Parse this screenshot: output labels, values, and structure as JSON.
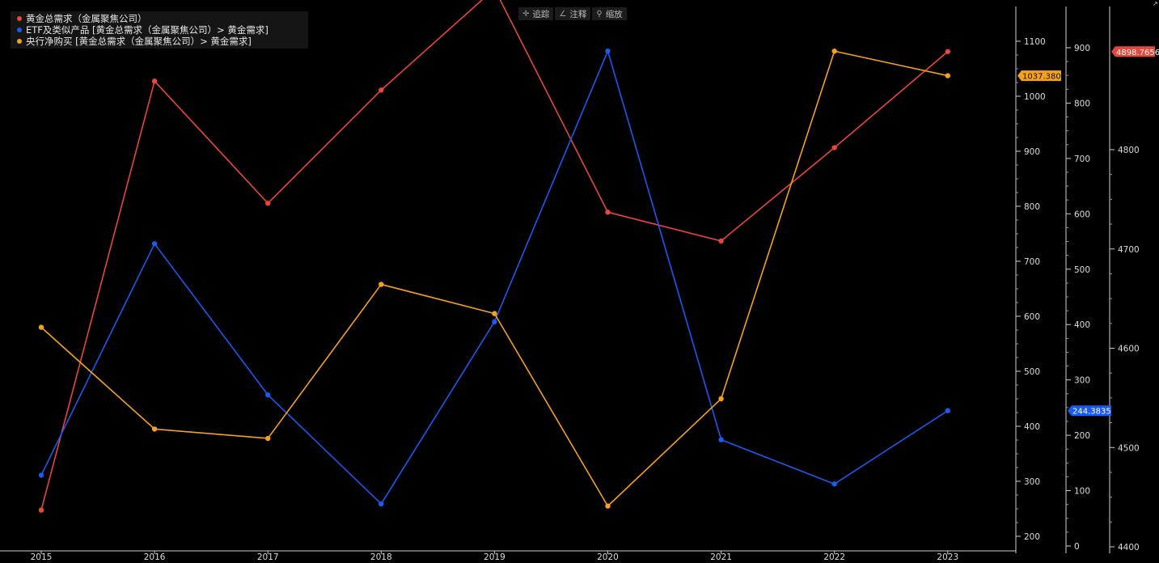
{
  "toolbar": {
    "track_label": "追踪",
    "annotate_label": "注释",
    "zoom_label": "缩放",
    "track_icon": "crosshair-icon",
    "annotate_icon": "pencil-icon",
    "zoom_icon": "magnifier-icon"
  },
  "legend": [
    {
      "label": "黄金总需求（金属聚焦公司）",
      "color": "#e8473b"
    },
    {
      "label": "ETF及类似产品 [黄金总需求（金属聚焦公司）> 黄金需求]",
      "color": "#1a5af0"
    },
    {
      "label": "央行净购买 [黄金总需求（金属聚焦公司）> 黄金需求]",
      "color": "#f5a11c"
    }
  ],
  "chart_data": {
    "type": "line",
    "x": [
      "2015",
      "2016",
      "2017",
      "2018",
      "2019",
      "2020",
      "2021",
      "2022",
      "2023"
    ],
    "series": [
      {
        "name": "黄金总需求（金属聚焦公司）",
        "color": "#e8473b",
        "axis": "axis3",
        "values": [
          4437,
          4869,
          4746,
          4860,
          4962,
          4737,
          4708,
          4802,
          4898.7656
        ],
        "last_label": "4898.7656"
      },
      {
        "name": "ETF及类似产品 [黄金总需求（金属聚焦公司）> 黄金需求]",
        "color": "#1a5af0",
        "axis": "axis2",
        "values": [
          128,
          546,
          273,
          76,
          405,
          894,
          192,
          112,
          244.3835
        ],
        "last_label": "244.3835"
      },
      {
        "name": "央行净购买 [黄金总需求（金属聚焦公司）> 黄金需求]",
        "color": "#f5a11c",
        "axis": "axis1",
        "values": [
          580,
          395,
          378,
          658,
          605,
          255,
          450,
          1082,
          1037.3807
        ],
        "last_label": "1037.3807"
      }
    ],
    "axes": {
      "axis1": {
        "min": 180,
        "max": 1120,
        "ticks": [
          200,
          300,
          400,
          500,
          600,
          700,
          800,
          900,
          1000,
          1100
        ]
      },
      "axis2": {
        "min": -10,
        "max": 945,
        "ticks": [
          0,
          100,
          200,
          300,
          400,
          500,
          600,
          700,
          800,
          900
        ]
      },
      "axis3": {
        "min": 4400,
        "max": 4930,
        "ticks": [
          4400,
          4500,
          4600,
          4700,
          4800
        ]
      }
    },
    "grid": false,
    "legend_position": "top-left"
  }
}
